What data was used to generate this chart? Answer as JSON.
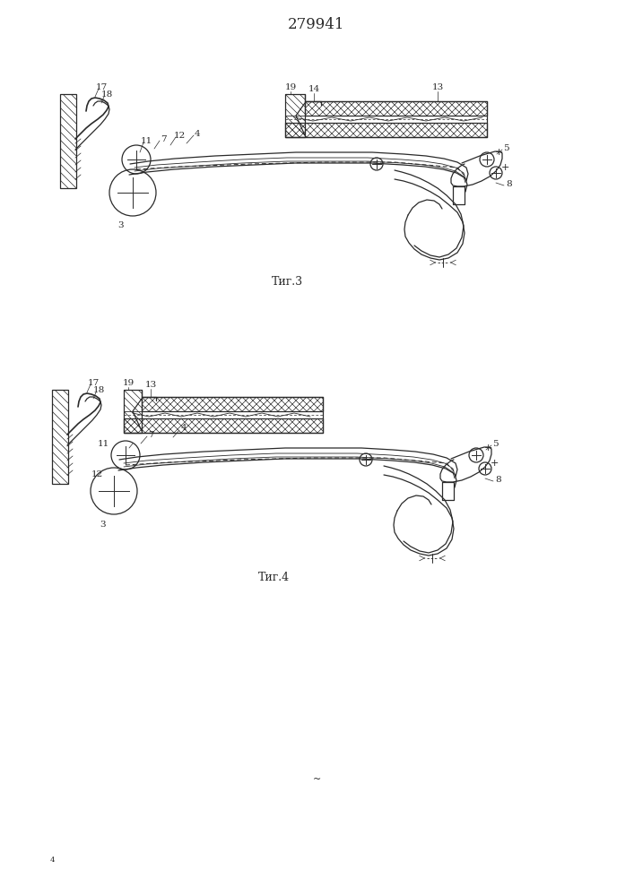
{
  "title": "279941",
  "bg_color": "#ffffff",
  "lc": "#2a2a2a",
  "lw": 0.9,
  "title_fs": 12,
  "label_fs": 7.5,
  "caption_fs": 9
}
